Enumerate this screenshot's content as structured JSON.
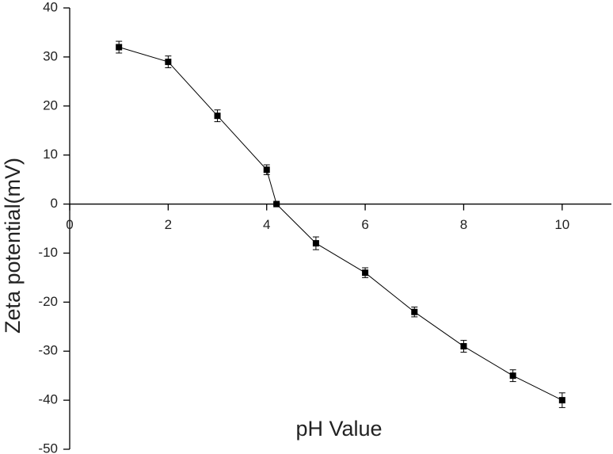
{
  "chart_data": {
    "type": "line",
    "x_label": "pH Value",
    "y_label": "Zeta potential(mV)",
    "x": [
      1,
      2,
      3,
      4,
      4.2,
      5,
      6,
      7,
      8,
      9,
      10
    ],
    "series": [
      {
        "color": "#000000",
        "values": [
          32,
          29,
          18,
          7,
          0,
          -8,
          -14,
          -22,
          -29,
          -35,
          -40
        ],
        "errors": [
          1.2,
          1.2,
          1.2,
          1,
          0.3,
          1.3,
          1,
          1,
          1.2,
          1.2,
          1.5
        ]
      }
    ],
    "xlim": [
      0,
      11
    ],
    "xticks": [
      0,
      2,
      4,
      6,
      8,
      10
    ],
    "ylim": [
      -50,
      40
    ],
    "yticks": [
      -50,
      -40,
      -30,
      -20,
      -10,
      0,
      10,
      20,
      30,
      40
    ],
    "grid": false
  }
}
